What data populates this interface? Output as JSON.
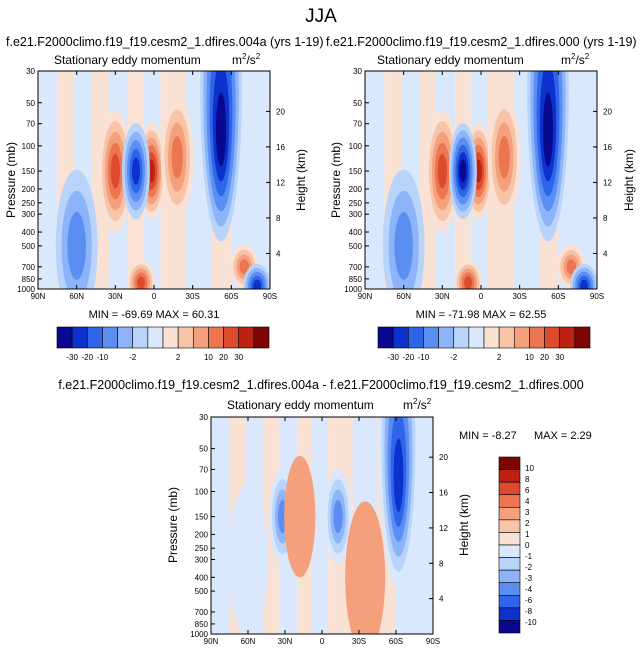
{
  "page": {
    "title": "JJA",
    "units_main": "m",
    "units_sup": "2",
    "units_tail": "/s",
    "units_sup2": "2"
  },
  "colors": {
    "top_scale": [
      "#08098f",
      "#0c31cc",
      "#2f66e9",
      "#5b8ef2",
      "#8db4f8",
      "#b9d4fb",
      "#d9e8fc",
      "#f9e2d4",
      "#f8c4a8",
      "#f4a07c",
      "#ec7552",
      "#dd4a2e",
      "#bd2112",
      "#7d0604"
    ],
    "diff_scale": [
      "#08098f",
      "#0c31cc",
      "#2f66e9",
      "#5b8ef2",
      "#8db4f8",
      "#b9d4fb",
      "#d9e8fc",
      "#f9e2d4",
      "#f8c4a8",
      "#f4a07c",
      "#ec7552",
      "#dd4a2e",
      "#bd2112",
      "#7d0604"
    ]
  },
  "chart_data": [
    {
      "type": "heatmap",
      "panel_id": "left",
      "title": "f.e21.F2000climo.f19_f19.cesm2_1.dfires.004a (yrs 1-19)",
      "subtitle": "Stationary eddy momentum",
      "ylabel": "Pressure (mb)",
      "ylabel_right": "Height (km)",
      "x_ticks": [
        "90N",
        "60N",
        "30N",
        "0",
        "30S",
        "60S",
        "90S"
      ],
      "y_ticks": [
        "30",
        "50",
        "70",
        "100",
        "150",
        "200",
        "250",
        "300",
        "400",
        "500",
        "700",
        "850",
        "1000"
      ],
      "y_ticks_right": [
        "20",
        "16",
        "12",
        "8",
        "4"
      ],
      "xlim": [
        90,
        -90
      ],
      "ylim_mb": [
        1000,
        30
      ],
      "stats": "MIN = -69.69   MAX =  60.31",
      "levels": [
        -30,
        -20,
        -10,
        -5,
        -2,
        -1,
        1,
        2,
        5,
        10,
        20,
        30
      ],
      "colorbar_labels": [
        "-30",
        "-20",
        "-10",
        "-2",
        "2",
        "10",
        "20",
        "30"
      ],
      "features": [
        {
          "lat": 2,
          "p": 150,
          "value": 60,
          "shape": "core"
        },
        {
          "lat": 30,
          "p": 150,
          "value": 25,
          "shape": "lobe"
        },
        {
          "lat": -18,
          "p": 120,
          "value": 12,
          "shape": "lobe"
        },
        {
          "lat": 14,
          "p": 150,
          "value": -25,
          "shape": "core"
        },
        {
          "lat": 60,
          "p": 500,
          "value": -5,
          "shape": "weak"
        },
        {
          "lat": -52,
          "p": 40,
          "value": -60,
          "shape": "jet"
        },
        {
          "lat": 10,
          "p": 900,
          "value": 20,
          "shape": "surface"
        },
        {
          "lat": -70,
          "p": 700,
          "value": 15,
          "shape": "surface"
        },
        {
          "lat": -80,
          "p": 950,
          "value": -20,
          "shape": "surface"
        }
      ]
    },
    {
      "type": "heatmap",
      "panel_id": "right",
      "title": "f.e21.F2000climo.f19_f19.cesm2_1.dfires.000 (yrs 1-19)",
      "subtitle": "Stationary eddy momentum",
      "ylabel": "Pressure (mb)",
      "ylabel_right": "Height (km)",
      "x_ticks": [
        "90N",
        "60N",
        "30N",
        "0",
        "30S",
        "60S",
        "90S"
      ],
      "y_ticks": [
        "30",
        "50",
        "70",
        "100",
        "150",
        "200",
        "250",
        "300",
        "400",
        "500",
        "700",
        "850",
        "1000"
      ],
      "y_ticks_right": [
        "20",
        "16",
        "12",
        "8",
        "4"
      ],
      "xlim": [
        90,
        -90
      ],
      "ylim_mb": [
        1000,
        30
      ],
      "stats": "MIN = -71.98   MAX =  62.55",
      "levels": [
        -30,
        -20,
        -10,
        -5,
        -2,
        -1,
        1,
        2,
        5,
        10,
        20,
        30
      ],
      "colorbar_labels": [
        "-30",
        "-20",
        "-10",
        "-2",
        "2",
        "10",
        "20",
        "30"
      ],
      "features": [
        {
          "lat": 2,
          "p": 150,
          "value": 62,
          "shape": "core"
        },
        {
          "lat": 30,
          "p": 150,
          "value": 25,
          "shape": "lobe"
        },
        {
          "lat": -18,
          "p": 120,
          "value": 12,
          "shape": "lobe"
        },
        {
          "lat": 14,
          "p": 150,
          "value": -30,
          "shape": "core"
        },
        {
          "lat": 60,
          "p": 500,
          "value": -5,
          "shape": "weak"
        },
        {
          "lat": -52,
          "p": 40,
          "value": -65,
          "shape": "jet"
        },
        {
          "lat": 10,
          "p": 900,
          "value": 20,
          "shape": "surface"
        },
        {
          "lat": -70,
          "p": 700,
          "value": 15,
          "shape": "surface"
        },
        {
          "lat": -80,
          "p": 950,
          "value": -20,
          "shape": "surface"
        }
      ]
    },
    {
      "type": "heatmap",
      "panel_id": "diff",
      "title": "f.e21.F2000climo.f19_f19.cesm2_1.dfires.004a - f.e21.F2000climo.f19_f19.cesm2_1.dfires.000",
      "subtitle": "Stationary eddy momentum",
      "ylabel": "Pressure (mb)",
      "ylabel_right": "Height (km)",
      "x_ticks": [
        "90N",
        "60N",
        "30N",
        "0",
        "30S",
        "60S",
        "90S"
      ],
      "y_ticks": [
        "30",
        "50",
        "70",
        "100",
        "150",
        "200",
        "250",
        "300",
        "400",
        "500",
        "700",
        "850",
        "1000"
      ],
      "y_ticks_right": [
        "20",
        "16",
        "12",
        "8",
        "4"
      ],
      "xlim": [
        90,
        -90
      ],
      "ylim_mb": [
        1000,
        30
      ],
      "stats_min": "MIN = -8.27",
      "stats_max": "MAX =  2.29",
      "levels": [
        -10,
        -8,
        -6,
        -4,
        -3,
        -2,
        -1,
        0,
        1,
        2,
        3,
        4,
        6,
        8,
        10
      ],
      "colorbar_labels": [
        "10",
        "8",
        "6",
        "4",
        "3",
        "2",
        "1",
        "0",
        "-1",
        "-2",
        "-3",
        "-4",
        "-6",
        "-8",
        "-10"
      ],
      "features": [
        {
          "lat": -62,
          "p": 40,
          "value": -8,
          "shape": "jet"
        },
        {
          "lat": 32,
          "p": 150,
          "value": -5,
          "shape": "core"
        },
        {
          "lat": -13,
          "p": 150,
          "value": -4,
          "shape": "core"
        },
        {
          "lat": 18,
          "p": 150,
          "value": 1.5,
          "shape": "lobe"
        },
        {
          "lat": 60,
          "p": 300,
          "value": -1,
          "shape": "weak"
        },
        {
          "lat": -35,
          "p": 400,
          "value": 1,
          "shape": "weak"
        }
      ]
    }
  ]
}
